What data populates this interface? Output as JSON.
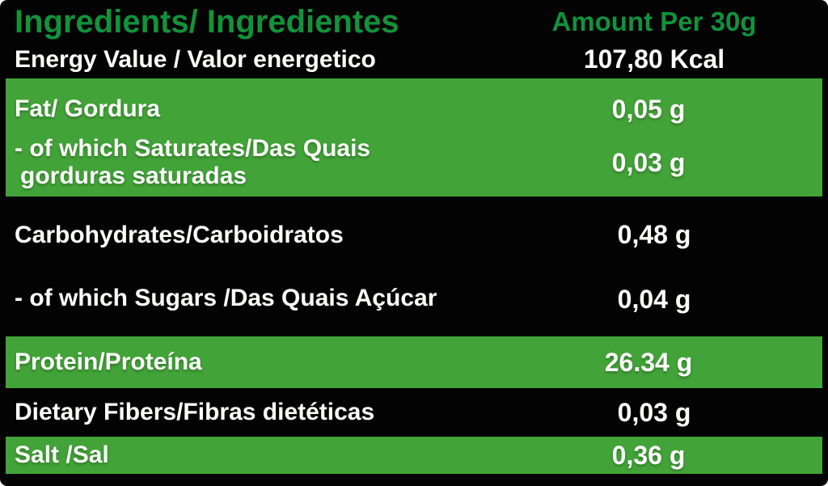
{
  "header": {
    "ingredients_title": "Ingredients/ Ingredientes",
    "amount_title": "Amount Per 30g"
  },
  "rows": [
    {
      "label": "Energy Value / Valor energetico",
      "value": "107,80 Kcal",
      "bg": "black"
    },
    {
      "label": "Fat/ Gordura",
      "value": "0,05 g",
      "bg": "green"
    },
    {
      "label_line1": "- of which Saturates/Das Quais",
      "label_line2": "gorduras saturadas",
      "value": "0,03 g",
      "bg": "green"
    },
    {
      "label": "Carbohydrates/Carboidratos",
      "value": "0,48 g",
      "bg": "black"
    },
    {
      "label": "- of which Sugars /Das Quais Açúcar",
      "value": "0,04 g",
      "bg": "black"
    },
    {
      "label": "Protein/Proteína",
      "value": "26.34 g",
      "bg": "green"
    },
    {
      "label": "Dietary Fibers/Fibras dietéticas",
      "value": "0,03 g",
      "bg": "black"
    },
    {
      "label": "Salt /Sal",
      "value": "0,36 g",
      "bg": "green"
    }
  ],
  "colors": {
    "band_green": "#42A338",
    "header_text_green": "#12923B",
    "background_black": "#030303",
    "text_white": "#FDFDFB"
  }
}
